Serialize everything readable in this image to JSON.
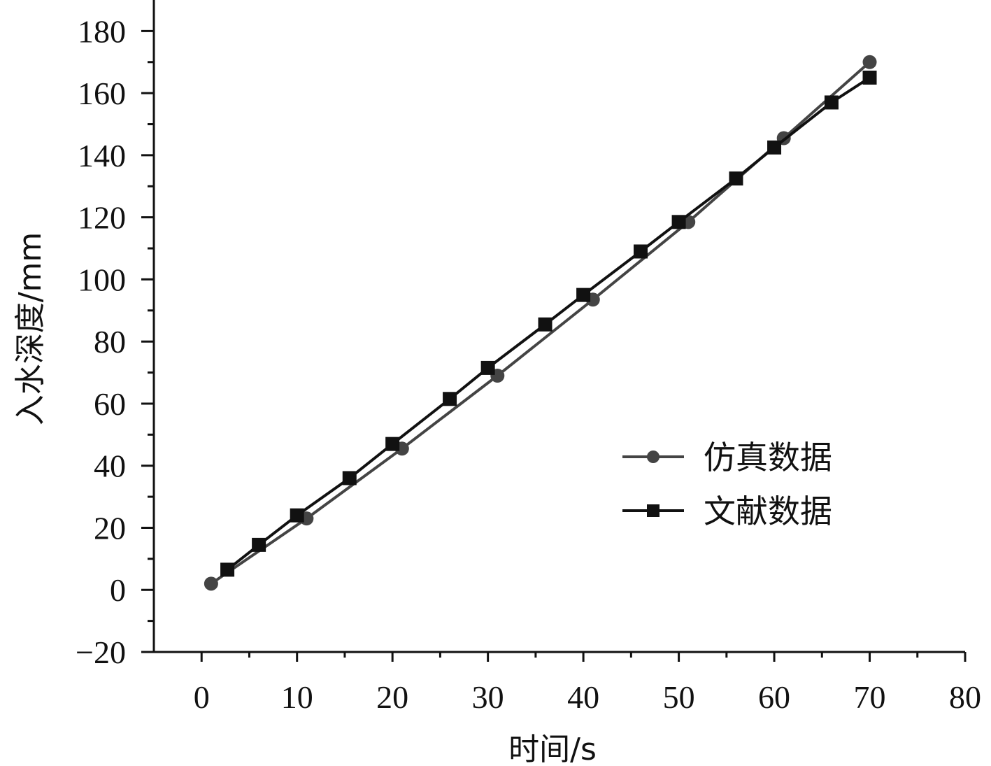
{
  "chart_data": {
    "type": "line",
    "title": "",
    "xlabel": "时间/s",
    "ylabel": "入水深度/mm",
    "xlim": [
      -5,
      80
    ],
    "ylim": [
      -20,
      190
    ],
    "x_ticks": [
      0,
      10,
      20,
      30,
      40,
      50,
      60,
      70,
      80
    ],
    "y_ticks": [
      -20,
      0,
      20,
      40,
      60,
      80,
      100,
      120,
      140,
      160,
      180
    ],
    "x_tick_labels": [
      "0",
      "10",
      "20",
      "30",
      "40",
      "50",
      "60",
      "70",
      "80"
    ],
    "y_tick_labels": [
      "−20",
      "0",
      "20",
      "40",
      "60",
      "80",
      "100",
      "120",
      "140",
      "160",
      "180"
    ],
    "grid": false,
    "legend_position": "center-right",
    "series": [
      {
        "name": "仿真数据",
        "marker": "circle",
        "color": "#444444",
        "x": [
          1,
          11,
          21,
          31,
          41,
          51,
          61,
          70
        ],
        "y": [
          2,
          23,
          45.5,
          69,
          93.5,
          118.5,
          145.5,
          170
        ]
      },
      {
        "name": "文献数据",
        "marker": "square",
        "color": "#111111",
        "x": [
          2.7,
          6,
          10,
          15.5,
          20,
          26,
          30,
          36,
          40,
          46,
          50,
          56,
          60,
          66,
          70
        ],
        "y": [
          6.5,
          14.5,
          24,
          36,
          47,
          61.5,
          71.5,
          85.5,
          95,
          109,
          118.5,
          132.5,
          142.5,
          157,
          165
        ]
      }
    ]
  }
}
